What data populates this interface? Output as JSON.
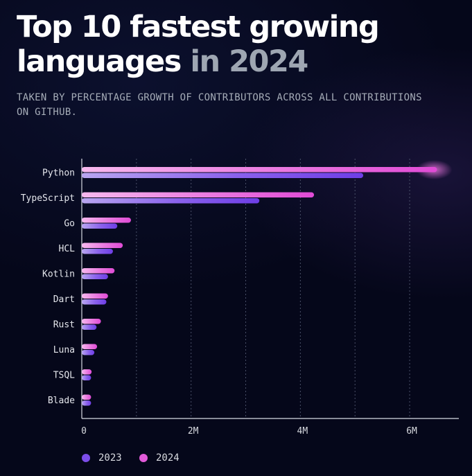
{
  "title": {
    "line1": "Top 10 fastest growing",
    "line2_main": "languages",
    "line2_muted": "in 2024"
  },
  "subtitle": "TAKEN BY PERCENTAGE GROWTH OF CONTRIBUTORS ACROSS ALL CONTRIBUTIONS ON GITHUB.",
  "colors": {
    "series_2023": "#7c4dea",
    "series_2024": "#e25ad9",
    "background": "#05071a"
  },
  "chart_data": {
    "type": "bar",
    "orientation": "horizontal",
    "title": "Top 10 fastest growing languages in 2024",
    "categories": [
      "Python",
      "TypeScript",
      "Go",
      "HCL",
      "Kotlin",
      "Dart",
      "Rust",
      "Luna",
      "TSQL",
      "Blade"
    ],
    "series": [
      {
        "name": "2024",
        "values": [
          6500000,
          4250000,
          900000,
          750000,
          600000,
          480000,
          350000,
          280000,
          180000,
          170000
        ]
      },
      {
        "name": "2023",
        "values": [
          5150000,
          3250000,
          650000,
          570000,
          480000,
          450000,
          270000,
          230000,
          170000,
          170000
        ]
      }
    ],
    "x_ticks": [
      {
        "value": 0,
        "label": "0"
      },
      {
        "value": 2000000,
        "label": "2M"
      },
      {
        "value": 4000000,
        "label": "4M"
      },
      {
        "value": 6000000,
        "label": "6M"
      }
    ],
    "xlim": [
      0,
      6900000
    ],
    "grid": "vertical dashed",
    "legend_position": "bottom-left"
  },
  "legend": [
    {
      "label": "2023"
    },
    {
      "label": "2024"
    }
  ]
}
